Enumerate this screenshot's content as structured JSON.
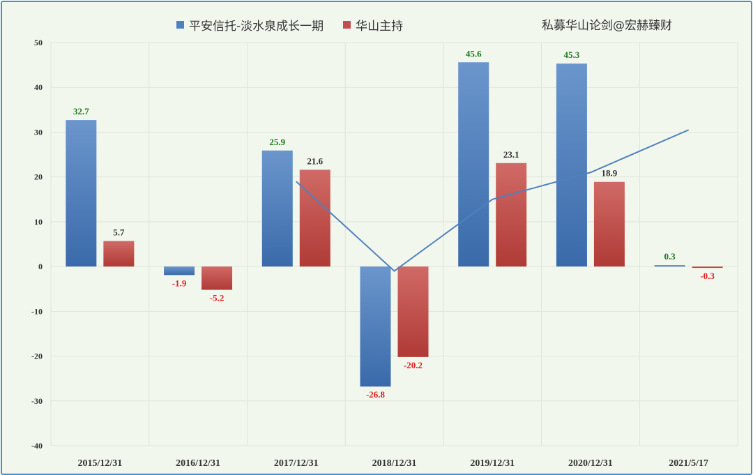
{
  "legend": {
    "series_a": "平安信托-淡水泉成长一期",
    "series_b": "华山主持"
  },
  "watermark": "私募华山论剑@宏赫臻财",
  "colors": {
    "series_a": "#4f81bd",
    "series_b": "#c0504d",
    "trendline": "#4f81bd",
    "label_positive_a": "#1a7a1a",
    "label_positive_b": "#333333",
    "label_negative": "#e02020",
    "background": "#f2f7ee",
    "border": "#4a90c8"
  },
  "chart_data": {
    "type": "bar",
    "categories": [
      "2015/12/31",
      "2016/12/31",
      "2017/12/31",
      "2018/12/31",
      "2019/12/31",
      "2020/12/31",
      "2021/5/17"
    ],
    "series": [
      {
        "name": "平安信托-淡水泉成长一期",
        "values": [
          32.7,
          -1.9,
          25.9,
          -26.8,
          45.6,
          45.3,
          0.3
        ]
      },
      {
        "name": "华山主持",
        "values": [
          5.7,
          -5.2,
          21.6,
          -20.2,
          23.1,
          18.9,
          -0.3
        ]
      }
    ],
    "value_labels": [
      [
        "32.7",
        "-1.9",
        "25.9",
        "-26.8",
        "45.6",
        "45.3",
        "0.3"
      ],
      [
        "5.7",
        "-5.2",
        "21.6",
        "-20.2",
        "23.1",
        "18.9",
        "-0.3"
      ]
    ],
    "trendline": {
      "type": "linear",
      "x": [
        "2017/12/31",
        "2018/12/31",
        "2019/12/31",
        "2020/12/31",
        "2021/5/17"
      ],
      "values": [
        19,
        -1,
        15,
        21,
        30.5
      ]
    },
    "ylim": [
      -40,
      50
    ],
    "yticks": [
      "-40",
      "-30",
      "-20",
      "-10",
      "0",
      "10",
      "20",
      "30",
      "40",
      "50"
    ],
    "grid": true,
    "legend_position": "top",
    "title": "",
    "xlabel": "",
    "ylabel": ""
  }
}
